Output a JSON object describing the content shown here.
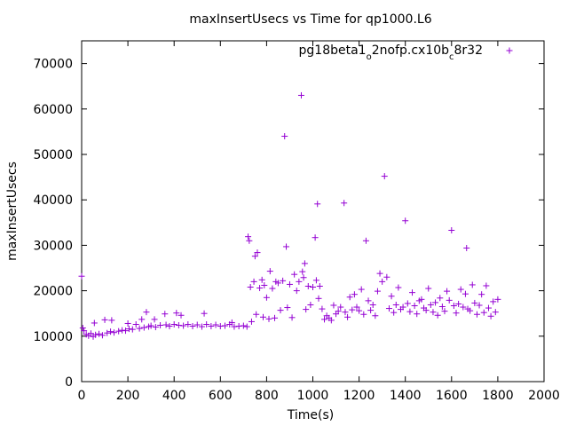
{
  "chart_data": {
    "type": "scatter",
    "title": "maxInsertUsecs vs Time for qp1000.L6",
    "xlabel": "Time(s)",
    "ylabel": "maxInsertUsecs",
    "xlim": [
      0,
      2000
    ],
    "ylim": [
      0,
      75000
    ],
    "x_ticks": [
      0,
      200,
      400,
      600,
      800,
      1000,
      1200,
      1400,
      1600,
      1800,
      2000
    ],
    "y_ticks": [
      0,
      10000,
      20000,
      30000,
      40000,
      50000,
      60000,
      70000
    ],
    "grid": false,
    "legend_position": "top-right",
    "marker": "plus",
    "series_color": "#9400d3",
    "series": [
      {
        "name": "pg18beta1_o2nofp.cx10b_c8r32",
        "points": [
          [
            0,
            23200
          ],
          [
            5,
            11800
          ],
          [
            10,
            11200
          ],
          [
            20,
            10400
          ],
          [
            30,
            10100
          ],
          [
            40,
            10600
          ],
          [
            50,
            9900
          ],
          [
            55,
            12900
          ],
          [
            60,
            10300
          ],
          [
            75,
            10500
          ],
          [
            90,
            10200
          ],
          [
            100,
            13600
          ],
          [
            110,
            10700
          ],
          [
            125,
            11000
          ],
          [
            130,
            13500
          ],
          [
            140,
            10800
          ],
          [
            160,
            11100
          ],
          [
            175,
            11300
          ],
          [
            190,
            11200
          ],
          [
            200,
            12800
          ],
          [
            205,
            11600
          ],
          [
            220,
            11500
          ],
          [
            235,
            12600
          ],
          [
            250,
            11700
          ],
          [
            260,
            13700
          ],
          [
            270,
            11900
          ],
          [
            280,
            15300
          ],
          [
            290,
            12100
          ],
          [
            300,
            12300
          ],
          [
            315,
            13700
          ],
          [
            320,
            12000
          ],
          [
            340,
            12400
          ],
          [
            360,
            14900
          ],
          [
            365,
            12500
          ],
          [
            380,
            12200
          ],
          [
            400,
            12600
          ],
          [
            410,
            15100
          ],
          [
            420,
            12400
          ],
          [
            430,
            14600
          ],
          [
            440,
            12300
          ],
          [
            460,
            12600
          ],
          [
            480,
            12200
          ],
          [
            500,
            12500
          ],
          [
            520,
            12100
          ],
          [
            530,
            15000
          ],
          [
            540,
            12600
          ],
          [
            560,
            12200
          ],
          [
            580,
            12500
          ],
          [
            600,
            12200
          ],
          [
            620,
            12300
          ],
          [
            640,
            12600
          ],
          [
            650,
            13000
          ],
          [
            660,
            12100
          ],
          [
            680,
            12200
          ],
          [
            700,
            12300
          ],
          [
            715,
            12100
          ],
          [
            720,
            31900
          ],
          [
            725,
            31000
          ],
          [
            730,
            20800
          ],
          [
            735,
            13200
          ],
          [
            745,
            22000
          ],
          [
            750,
            27600
          ],
          [
            755,
            14800
          ],
          [
            760,
            28400
          ],
          [
            770,
            20600
          ],
          [
            780,
            22400
          ],
          [
            785,
            14200
          ],
          [
            790,
            21200
          ],
          [
            800,
            18500
          ],
          [
            810,
            13800
          ],
          [
            815,
            24300
          ],
          [
            825,
            20500
          ],
          [
            835,
            14000
          ],
          [
            840,
            22000
          ],
          [
            850,
            21700
          ],
          [
            860,
            15700
          ],
          [
            870,
            22200
          ],
          [
            878,
            54000
          ],
          [
            885,
            29700
          ],
          [
            890,
            16300
          ],
          [
            900,
            21400
          ],
          [
            910,
            14100
          ],
          [
            920,
            23600
          ],
          [
            930,
            20000
          ],
          [
            940,
            22000
          ],
          [
            950,
            63000
          ],
          [
            955,
            24200
          ],
          [
            960,
            22900
          ],
          [
            965,
            26000
          ],
          [
            970,
            15900
          ],
          [
            980,
            21000
          ],
          [
            990,
            16900
          ],
          [
            1000,
            20800
          ],
          [
            1010,
            31700
          ],
          [
            1015,
            22300
          ],
          [
            1020,
            39100
          ],
          [
            1025,
            18300
          ],
          [
            1030,
            21000
          ],
          [
            1040,
            16000
          ],
          [
            1050,
            13700
          ],
          [
            1060,
            14500
          ],
          [
            1070,
            14000
          ],
          [
            1080,
            13500
          ],
          [
            1090,
            16800
          ],
          [
            1100,
            14900
          ],
          [
            1110,
            15500
          ],
          [
            1120,
            16400
          ],
          [
            1135,
            39300
          ],
          [
            1140,
            15300
          ],
          [
            1150,
            14200
          ],
          [
            1160,
            18600
          ],
          [
            1170,
            15800
          ],
          [
            1180,
            19200
          ],
          [
            1190,
            16400
          ],
          [
            1200,
            15600
          ],
          [
            1210,
            20300
          ],
          [
            1220,
            14800
          ],
          [
            1230,
            31000
          ],
          [
            1240,
            17800
          ],
          [
            1250,
            15700
          ],
          [
            1260,
            16900
          ],
          [
            1270,
            14500
          ],
          [
            1280,
            19900
          ],
          [
            1290,
            23800
          ],
          [
            1300,
            22000
          ],
          [
            1310,
            45200
          ],
          [
            1320,
            23000
          ],
          [
            1330,
            16100
          ],
          [
            1340,
            18800
          ],
          [
            1350,
            15200
          ],
          [
            1360,
            16900
          ],
          [
            1370,
            20700
          ],
          [
            1380,
            15900
          ],
          [
            1390,
            16400
          ],
          [
            1400,
            35400
          ],
          [
            1410,
            17200
          ],
          [
            1420,
            15400
          ],
          [
            1430,
            19600
          ],
          [
            1440,
            16700
          ],
          [
            1450,
            14900
          ],
          [
            1460,
            17800
          ],
          [
            1470,
            18100
          ],
          [
            1480,
            16200
          ],
          [
            1490,
            15700
          ],
          [
            1500,
            20500
          ],
          [
            1510,
            16900
          ],
          [
            1520,
            15300
          ],
          [
            1530,
            17400
          ],
          [
            1540,
            14600
          ],
          [
            1550,
            18400
          ],
          [
            1560,
            16500
          ],
          [
            1570,
            15500
          ],
          [
            1580,
            19900
          ],
          [
            1590,
            17900
          ],
          [
            1600,
            33300
          ],
          [
            1610,
            16700
          ],
          [
            1620,
            15100
          ],
          [
            1630,
            17100
          ],
          [
            1640,
            20300
          ],
          [
            1650,
            16400
          ],
          [
            1660,
            19300
          ],
          [
            1665,
            29400
          ],
          [
            1670,
            16000
          ],
          [
            1680,
            15600
          ],
          [
            1690,
            21300
          ],
          [
            1700,
            17300
          ],
          [
            1710,
            14800
          ],
          [
            1720,
            16800
          ],
          [
            1730,
            19200
          ],
          [
            1740,
            15200
          ],
          [
            1750,
            21100
          ],
          [
            1760,
            16200
          ],
          [
            1770,
            14400
          ],
          [
            1780,
            17600
          ],
          [
            1790,
            15300
          ],
          [
            1800,
            18100
          ]
        ]
      }
    ]
  }
}
